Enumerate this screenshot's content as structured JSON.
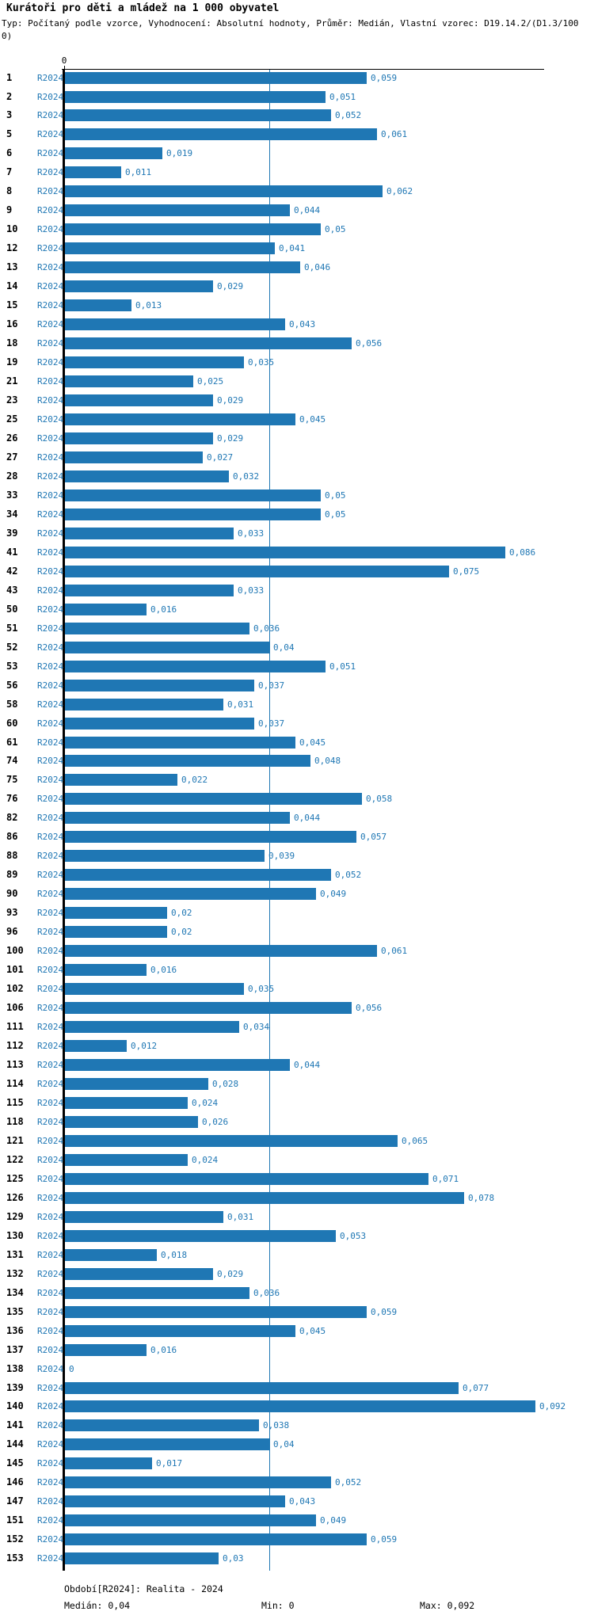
{
  "title": "Kurátoři pro děti a mládež na 1 000 obyvatel",
  "subtitle_line1": "Typ: Počítaný podle vzorce, Vyhodnocení: Absolutní hodnoty, Průměr: Medián, Vlastní vzorec: D19.14.2/(D1.3/100",
  "subtitle_line2": "0)",
  "colors": {
    "bar": "#1f77b4",
    "value_label": "#1f77b4",
    "series_label": "#1f77b4",
    "median_line": "#1f77b4",
    "axis": "#000000",
    "category_label": "#000000"
  },
  "chart_data": {
    "type": "bar",
    "orientation": "horizontal",
    "title": "Kurátoři pro děti a mládež na 1 000 obyvatel",
    "xlabel": "",
    "ylabel": "",
    "xlim": [
      0,
      0.0936
    ],
    "x_tick_labels": [
      "0"
    ],
    "grid": false,
    "legend": null,
    "series_label": "R2024",
    "median_value": 0.04,
    "median_line": true,
    "categories": [
      "1",
      "2",
      "3",
      "5",
      "6",
      "7",
      "8",
      "9",
      "10",
      "12",
      "13",
      "14",
      "15",
      "16",
      "18",
      "19",
      "21",
      "23",
      "25",
      "26",
      "27",
      "28",
      "33",
      "34",
      "39",
      "41",
      "42",
      "43",
      "50",
      "51",
      "52",
      "53",
      "56",
      "58",
      "60",
      "61",
      "74",
      "75",
      "76",
      "82",
      "86",
      "88",
      "89",
      "90",
      "93",
      "96",
      "100",
      "101",
      "102",
      "106",
      "111",
      "112",
      "113",
      "114",
      "115",
      "118",
      "121",
      "122",
      "125",
      "126",
      "129",
      "130",
      "131",
      "132",
      "134",
      "135",
      "136",
      "137",
      "138",
      "139",
      "140",
      "141",
      "144",
      "145",
      "146",
      "147",
      "151",
      "152",
      "153"
    ],
    "values": [
      0.059,
      0.051,
      0.052,
      0.061,
      0.019,
      0.011,
      0.062,
      0.044,
      0.05,
      0.041,
      0.046,
      0.029,
      0.013,
      0.043,
      0.056,
      0.035,
      0.025,
      0.029,
      0.045,
      0.029,
      0.027,
      0.032,
      0.05,
      0.05,
      0.033,
      0.086,
      0.075,
      0.033,
      0.016,
      0.036,
      0.04,
      0.051,
      0.037,
      0.031,
      0.037,
      0.045,
      0.048,
      0.022,
      0.058,
      0.044,
      0.057,
      0.039,
      0.052,
      0.049,
      0.02,
      0.02,
      0.061,
      0.016,
      0.035,
      0.056,
      0.034,
      0.012,
      0.044,
      0.028,
      0.024,
      0.026,
      0.065,
      0.024,
      0.071,
      0.078,
      0.031,
      0.053,
      0.018,
      0.029,
      0.036,
      0.059,
      0.045,
      0.016,
      0,
      0.077,
      0.092,
      0.038,
      0.04,
      0.017,
      0.052,
      0.043,
      0.049,
      0.059,
      0.03
    ],
    "value_labels": [
      "0,059",
      "0,051",
      "0,052",
      "0,061",
      "0,019",
      "0,011",
      "0,062",
      "0,044",
      "0,05",
      "0,041",
      "0,046",
      "0,029",
      "0,013",
      "0,043",
      "0,056",
      "0,035",
      "0,025",
      "0,029",
      "0,045",
      "0,029",
      "0,027",
      "0,032",
      "0,05",
      "0,05",
      "0,033",
      "0,086",
      "0,075",
      "0,033",
      "0,016",
      "0,036",
      "0,04",
      "0,051",
      "0,037",
      "0,031",
      "0,037",
      "0,045",
      "0,048",
      "0,022",
      "0,058",
      "0,044",
      "0,057",
      "0,039",
      "0,052",
      "0,049",
      "0,02",
      "0,02",
      "0,061",
      "0,016",
      "0,035",
      "0,056",
      "0,034",
      "0,012",
      "0,044",
      "0,028",
      "0,024",
      "0,026",
      "0,065",
      "0,024",
      "0,071",
      "0,078",
      "0,031",
      "0,053",
      "0,018",
      "0,029",
      "0,036",
      "0,059",
      "0,045",
      "0,016",
      "0",
      "0,077",
      "0,092",
      "0,038",
      "0,04",
      "0,017",
      "0,052",
      "0,043",
      "0,049",
      "0,059",
      "0,03"
    ]
  },
  "footer": {
    "period": "Období[R2024]: Realita - 2024",
    "median": "Medián: 0,04",
    "min": "Min: 0",
    "max": "Max: 0,092"
  }
}
